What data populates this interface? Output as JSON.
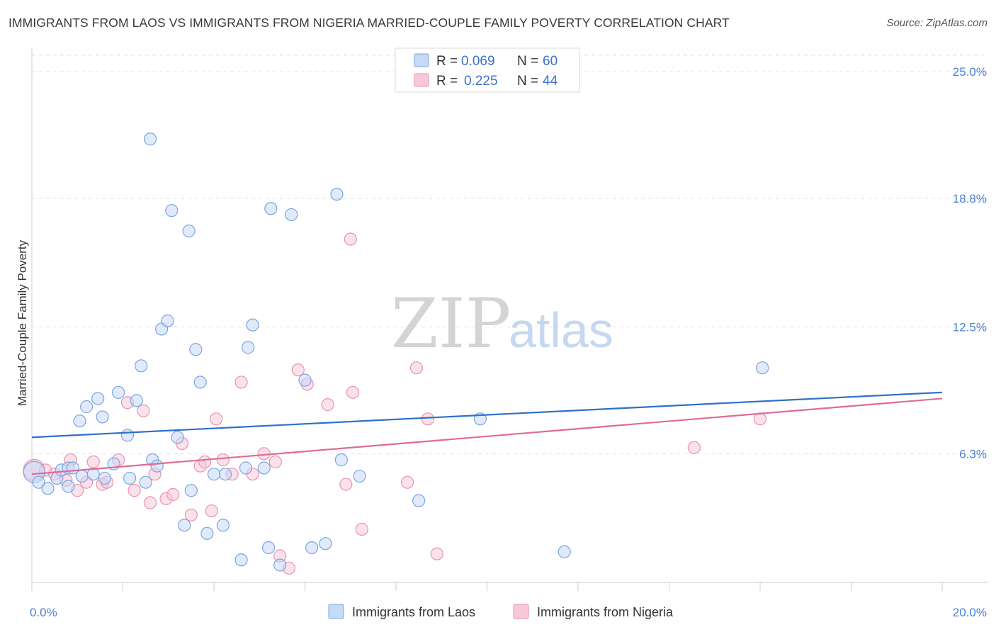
{
  "header": {
    "title": "IMMIGRANTS FROM LAOS VS IMMIGRANTS FROM NIGERIA MARRIED-COUPLE FAMILY POVERTY CORRELATION CHART",
    "source": "Source: ZipAtlas.com"
  },
  "watermark": {
    "zip": "ZIP",
    "atlas": "atlas"
  },
  "legend": {
    "r_label": "R =",
    "n_label": "N =",
    "laos": {
      "r": "0.069",
      "n": "60"
    },
    "nigeria": {
      "r": "0.225",
      "n": "44"
    }
  },
  "colors": {
    "laos_fill": "#c6d9f5",
    "laos_stroke": "#7aa5e0",
    "laos_line": "#2f6fcc",
    "nigeria_fill": "#f8c8d8",
    "nigeria_stroke": "#e893b0",
    "nigeria_line": "#e06b96",
    "tick_label": "#4a7fd0"
  },
  "chart_data": {
    "type": "scatter",
    "title": "IMMIGRANTS FROM LAOS VS IMMIGRANTS FROM NIGERIA MARRIED-COUPLE FAMILY POVERTY CORRELATION CHART",
    "xlabel": "",
    "ylabel": "Married-Couple Family Poverty",
    "xlim": [
      0,
      20
    ],
    "ylim": [
      0,
      25.8
    ],
    "x_tick_labels": [
      "0.0%",
      "20.0%"
    ],
    "y_ticks": [
      6.3,
      12.5,
      18.8,
      25.0
    ],
    "y_tick_labels": [
      "6.3%",
      "12.5%",
      "18.8%",
      "25.0%"
    ],
    "grid": true,
    "legend_position": "top-center",
    "series": [
      {
        "name": "Immigrants from Laos",
        "trend": {
          "x": [
            0,
            20
          ],
          "y": [
            7.1,
            9.3
          ]
        },
        "points": [
          {
            "x": 0.05,
            "y": 5.4,
            "big": true
          },
          {
            "x": 0.15,
            "y": 4.9
          },
          {
            "x": 0.35,
            "y": 4.6
          },
          {
            "x": 0.55,
            "y": 5.1
          },
          {
            "x": 0.65,
            "y": 5.5
          },
          {
            "x": 0.8,
            "y": 5.6
          },
          {
            "x": 0.8,
            "y": 4.7
          },
          {
            "x": 1.05,
            "y": 7.9
          },
          {
            "x": 0.9,
            "y": 5.6
          },
          {
            "x": 1.1,
            "y": 5.2
          },
          {
            "x": 1.2,
            "y": 8.6
          },
          {
            "x": 1.45,
            "y": 9.0
          },
          {
            "x": 1.35,
            "y": 5.3
          },
          {
            "x": 1.55,
            "y": 8.1
          },
          {
            "x": 1.6,
            "y": 5.1
          },
          {
            "x": 1.8,
            "y": 5.8
          },
          {
            "x": 1.9,
            "y": 9.3
          },
          {
            "x": 2.1,
            "y": 7.2
          },
          {
            "x": 2.15,
            "y": 5.1
          },
          {
            "x": 2.3,
            "y": 8.9
          },
          {
            "x": 2.4,
            "y": 10.6
          },
          {
            "x": 2.5,
            "y": 4.9
          },
          {
            "x": 2.6,
            "y": 21.7
          },
          {
            "x": 2.65,
            "y": 6.0
          },
          {
            "x": 2.75,
            "y": 5.7
          },
          {
            "x": 2.85,
            "y": 12.4
          },
          {
            "x": 2.98,
            "y": 12.8
          },
          {
            "x": 3.07,
            "y": 18.2
          },
          {
            "x": 3.2,
            "y": 7.1
          },
          {
            "x": 3.35,
            "y": 2.8
          },
          {
            "x": 3.45,
            "y": 17.2
          },
          {
            "x": 3.5,
            "y": 4.5
          },
          {
            "x": 3.6,
            "y": 11.4
          },
          {
            "x": 3.7,
            "y": 9.8
          },
          {
            "x": 3.85,
            "y": 2.4
          },
          {
            "x": 4.0,
            "y": 5.3
          },
          {
            "x": 4.2,
            "y": 2.8
          },
          {
            "x": 4.25,
            "y": 5.3
          },
          {
            "x": 4.6,
            "y": 1.1
          },
          {
            "x": 4.7,
            "y": 5.6
          },
          {
            "x": 4.75,
            "y": 11.5
          },
          {
            "x": 4.85,
            "y": 12.6
          },
          {
            "x": 5.1,
            "y": 5.6
          },
          {
            "x": 5.25,
            "y": 18.3
          },
          {
            "x": 5.2,
            "y": 1.7
          },
          {
            "x": 5.45,
            "y": 0.85
          },
          {
            "x": 5.7,
            "y": 18.0
          },
          {
            "x": 6.0,
            "y": 9.9
          },
          {
            "x": 6.15,
            "y": 1.7
          },
          {
            "x": 6.45,
            "y": 1.9
          },
          {
            "x": 6.8,
            "y": 6.0
          },
          {
            "x": 6.7,
            "y": 19.0
          },
          {
            "x": 7.2,
            "y": 5.2
          },
          {
            "x": 8.5,
            "y": 4.0
          },
          {
            "x": 9.85,
            "y": 8.0
          },
          {
            "x": 11.7,
            "y": 1.5
          },
          {
            "x": 16.05,
            "y": 10.5
          }
        ]
      },
      {
        "name": "Immigrants from Nigeria",
        "trend": {
          "x": [
            0,
            20
          ],
          "y": [
            5.3,
            9.0
          ]
        },
        "points": [
          {
            "x": 0.05,
            "y": 5.5,
            "big": true
          },
          {
            "x": 0.3,
            "y": 5.5
          },
          {
            "x": 0.5,
            "y": 5.3
          },
          {
            "x": 0.75,
            "y": 5.0
          },
          {
            "x": 0.85,
            "y": 6.0
          },
          {
            "x": 1.0,
            "y": 4.5
          },
          {
            "x": 1.2,
            "y": 4.9
          },
          {
            "x": 1.35,
            "y": 5.9
          },
          {
            "x": 1.55,
            "y": 4.8
          },
          {
            "x": 1.65,
            "y": 4.9
          },
          {
            "x": 1.9,
            "y": 6.0
          },
          {
            "x": 2.1,
            "y": 8.8
          },
          {
            "x": 2.25,
            "y": 4.5
          },
          {
            "x": 2.45,
            "y": 8.4
          },
          {
            "x": 2.6,
            "y": 3.9
          },
          {
            "x": 2.7,
            "y": 5.3
          },
          {
            "x": 2.95,
            "y": 4.1
          },
          {
            "x": 3.1,
            "y": 4.3
          },
          {
            "x": 3.3,
            "y": 6.8
          },
          {
            "x": 3.5,
            "y": 3.3
          },
          {
            "x": 3.7,
            "y": 5.7
          },
          {
            "x": 3.8,
            "y": 5.9
          },
          {
            "x": 3.95,
            "y": 3.5
          },
          {
            "x": 4.05,
            "y": 8.0
          },
          {
            "x": 4.2,
            "y": 6.0
          },
          {
            "x": 4.4,
            "y": 5.3
          },
          {
            "x": 4.6,
            "y": 9.8
          },
          {
            "x": 4.85,
            "y": 5.3
          },
          {
            "x": 5.1,
            "y": 6.3
          },
          {
            "x": 5.35,
            "y": 5.9
          },
          {
            "x": 5.45,
            "y": 1.3
          },
          {
            "x": 5.65,
            "y": 0.7
          },
          {
            "x": 5.85,
            "y": 10.4
          },
          {
            "x": 6.05,
            "y": 9.7
          },
          {
            "x": 6.5,
            "y": 8.7
          },
          {
            "x": 6.9,
            "y": 4.8
          },
          {
            "x": 7.0,
            "y": 16.8
          },
          {
            "x": 7.05,
            "y": 9.3
          },
          {
            "x": 7.25,
            "y": 2.6
          },
          {
            "x": 8.25,
            "y": 4.9
          },
          {
            "x": 8.45,
            "y": 10.5
          },
          {
            "x": 8.7,
            "y": 8.0
          },
          {
            "x": 8.9,
            "y": 1.4
          },
          {
            "x": 14.55,
            "y": 6.6
          },
          {
            "x": 16.0,
            "y": 8.0
          }
        ]
      }
    ]
  },
  "bottom_legend": {
    "laos_label": "Immigrants from Laos",
    "nigeria_label": "Immigrants from Nigeria"
  }
}
